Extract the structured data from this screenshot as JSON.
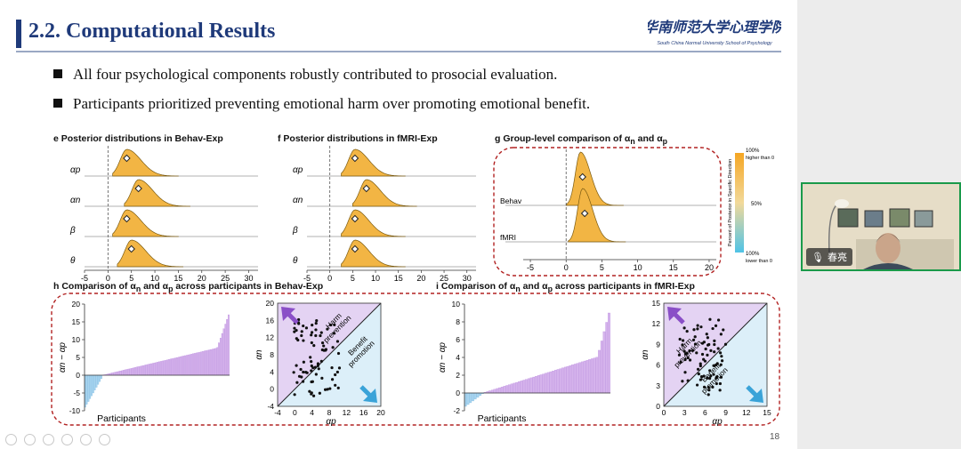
{
  "slide": {
    "title": "2.2. Computational Results",
    "logo_text": "华南师范大学心理学院",
    "logo_sub": "South China Normal University School of Psychology",
    "bullets": [
      "All four psychological components robustly contributed to prosocial evaluation.",
      "Participants prioritized preventing emotional harm over promoting emotional benefit."
    ],
    "page_number": "18"
  },
  "panels": {
    "e": {
      "letter": "e",
      "title": "Posterior distributions in Behav-Exp"
    },
    "f": {
      "letter": "f",
      "title": "Posterior distributions in fMRI-Exp"
    },
    "g": {
      "letter": "g",
      "title": "Group-level comparison of α",
      "sub_n": "n",
      "mid": " and α",
      "sub_p": "p"
    },
    "h": {
      "letter": "h",
      "title": "Comparison of α",
      "sub_n": "n",
      "mid": " and α",
      "sub_p": "p",
      "tail": " across participants in",
      "exp": "Behav-Exp"
    },
    "i": {
      "letter": "i",
      "title": "Comparison of α",
      "sub_n": "n",
      "mid": " and α",
      "sub_p": "p",
      "tail": " across participants in",
      "exp": "fMRI-Exp"
    }
  },
  "labels": {
    "harm": "Harm",
    "prevention": "prevention",
    "benefit": "Benefit",
    "promotion": "promotion",
    "participants": "Participants",
    "behav": "Behav",
    "fmri": "fMRI",
    "colorbar_top": "100%",
    "colorbar_top2": "higher than 0",
    "colorbar_mid": "50%",
    "colorbar_bot": "100%",
    "colorbar_bot2": "lower than 0",
    "colorbar_title": "Percent of Posterior in Specific Direction"
  },
  "video": {
    "name": "春亮",
    "border_color": "#1a9a4a"
  },
  "chart_data": [
    {
      "type": "area",
      "id": "e",
      "rows": [
        "αp",
        "αn",
        "β",
        "θ"
      ],
      "peaks": [
        4,
        6.5,
        4,
        5
      ],
      "xticks": [
        -5,
        0,
        5,
        10,
        15,
        20,
        25,
        30
      ],
      "xlim": [
        -5,
        32
      ]
    },
    {
      "type": "area",
      "id": "f",
      "rows": [
        "αp",
        "αn",
        "β",
        "θ"
      ],
      "peaks": [
        5.5,
        8,
        5.5,
        5.5
      ],
      "xticks": [
        -5,
        0,
        5,
        10,
        15,
        20,
        25,
        30
      ],
      "xlim": [
        -5,
        32
      ]
    },
    {
      "type": "area",
      "id": "g",
      "rows": [
        "Behav",
        "fMRI"
      ],
      "xticks": [
        -5,
        0,
        5,
        10,
        15,
        20
      ],
      "xlim": [
        -6,
        21
      ]
    },
    {
      "type": "bar",
      "id": "h-bar",
      "ylabel": "αn − αp",
      "yticks": [
        -10,
        -5,
        0,
        5,
        10,
        15,
        20
      ],
      "ylim": [
        -10,
        20
      ],
      "xlabel": "Participants",
      "n": 90,
      "min": -9,
      "max": 17
    },
    {
      "type": "scatter",
      "id": "h-scatter",
      "xlabel": "αp",
      "ylabel": "αn",
      "xticks": [
        -4,
        0,
        4,
        8,
        12,
        16,
        20
      ],
      "yticks": [
        -4,
        0,
        4,
        8,
        12,
        16,
        20
      ],
      "lim": [
        -4,
        20
      ]
    },
    {
      "type": "bar",
      "id": "i-bar",
      "ylabel": "αn − αp",
      "yticks": [
        -2,
        0,
        2,
        4,
        6,
        8,
        10
      ],
      "ylim": [
        -2,
        10
      ],
      "xlabel": "Participants",
      "n": 60,
      "min": -1.5,
      "max": 9
    },
    {
      "type": "scatter",
      "id": "i-scatter",
      "xlabel": "αp",
      "ylabel": "αn",
      "xticks": [
        0,
        3,
        6,
        9,
        12,
        15
      ],
      "yticks": [
        0,
        3,
        6,
        9,
        12,
        15
      ],
      "lim": [
        0,
        15
      ]
    }
  ]
}
